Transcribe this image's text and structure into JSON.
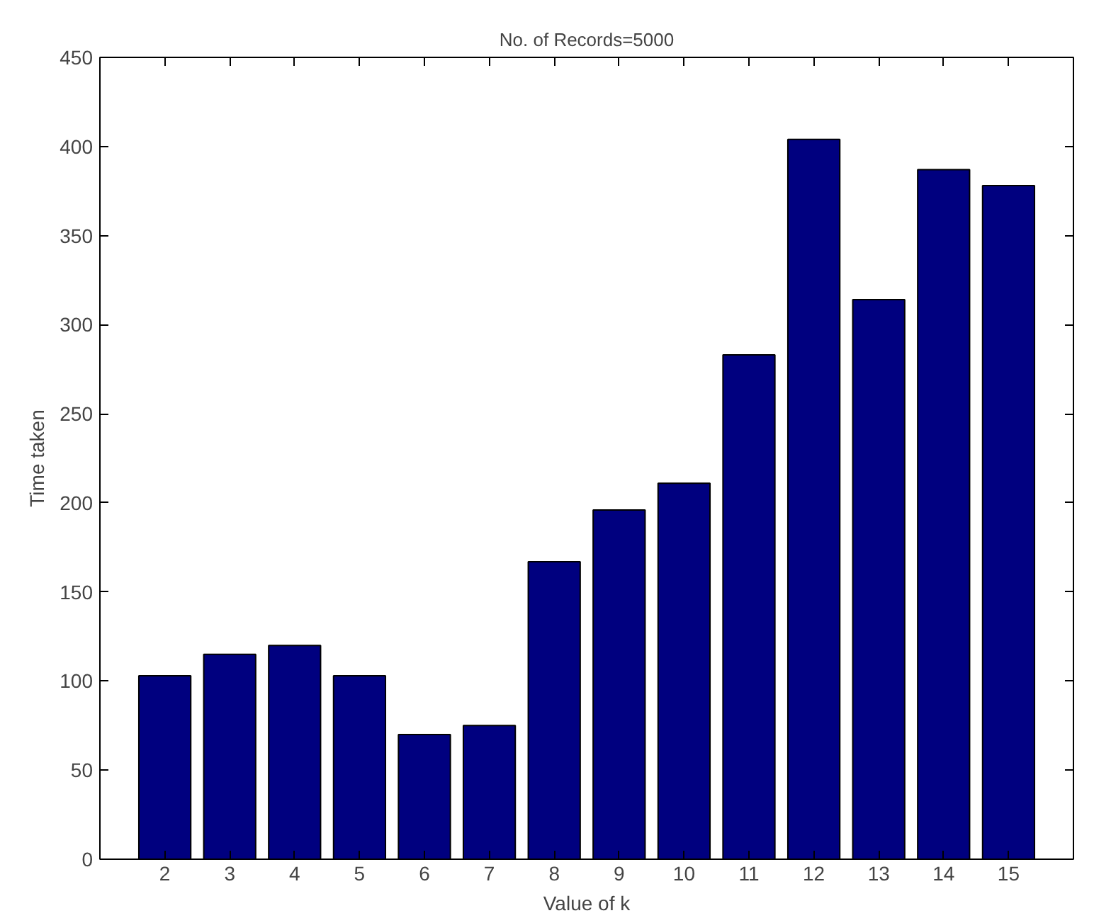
{
  "chart_data": {
    "type": "bar",
    "title": "No. of Records=5000",
    "xlabel": "Value of k",
    "ylabel": "Time taken",
    "x": [
      2,
      3,
      4,
      5,
      6,
      7,
      8,
      9,
      10,
      11,
      12,
      13,
      14,
      15
    ],
    "values": [
      103,
      115,
      120,
      103,
      70,
      75,
      167,
      196,
      211,
      283,
      404,
      314,
      387,
      378
    ],
    "color": "#00007f",
    "xlim": [
      1,
      16
    ],
    "ylim": [
      0,
      450
    ],
    "xticks": [
      2,
      3,
      4,
      5,
      6,
      7,
      8,
      9,
      10,
      11,
      12,
      13,
      14,
      15
    ],
    "yticks": [
      0,
      50,
      100,
      150,
      200,
      250,
      300,
      350,
      400,
      450
    ],
    "grid": false
  }
}
